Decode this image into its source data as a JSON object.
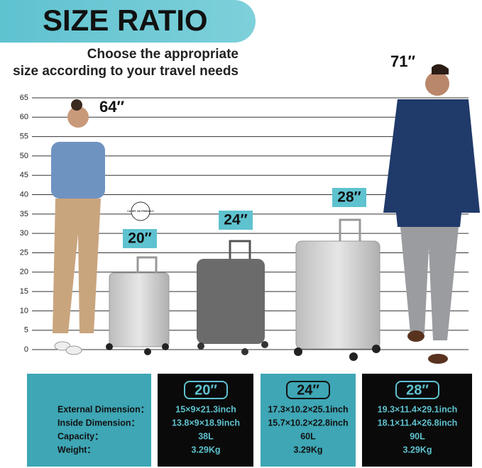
{
  "header": {
    "title": "SIZE RATIO",
    "subtitle": [
      "Choose the appropriate",
      "size according to your travel needs"
    ]
  },
  "scale": {
    "lim": [
      0,
      65
    ],
    "ticks": [
      0,
      5,
      10,
      15,
      20,
      25,
      30,
      35,
      40,
      45,
      50,
      55,
      60,
      65
    ]
  },
  "people": [
    {
      "height": "64″"
    },
    {
      "height": "71″"
    }
  ],
  "badge": "CARRY ON FRIENDLY",
  "suitcases": [
    "20″",
    "24″",
    "28″"
  ],
  "table": {
    "row_labels": [
      "External Dimension：",
      "Inside Dimension：",
      "Capacity：",
      "Weight："
    ],
    "columns": [
      {
        "size": "20″",
        "rows": [
          "15×9×21.3inch",
          "13.8×9×18.9inch",
          "38L",
          "3.29Kg"
        ]
      },
      {
        "size": "24″",
        "rows": [
          "17.3×10.2×25.1inch",
          "15.7×10.2×22.8inch",
          "60L",
          "3.29Kg"
        ]
      },
      {
        "size": "28″",
        "rows": [
          "19.3×11.4×29.1inch",
          "18.1×11.4×26.8inch",
          "90L",
          "3.29Kg"
        ]
      }
    ]
  }
}
